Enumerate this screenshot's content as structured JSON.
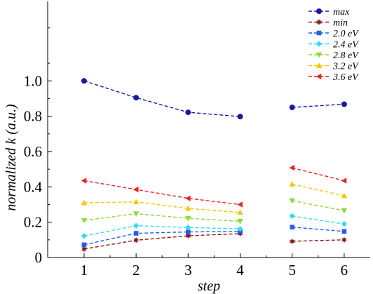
{
  "chart_data": {
    "type": "line",
    "xlabel": "step",
    "ylabel": "normalized k (a.u.)",
    "x": [
      1,
      2,
      3,
      4,
      5,
      6
    ],
    "xlim": [
      0.3,
      6.5
    ],
    "ylim": [
      0,
      1.45
    ],
    "x_ticks": [
      "1",
      "2",
      "3",
      "4",
      "5",
      "6"
    ],
    "y_ticks": [
      "0",
      "0.2",
      "0.4",
      "0.6",
      "0.8",
      "1.0"
    ],
    "line_style": "dashed",
    "grid": false,
    "legend_position": "top-right",
    "break_between_x": [
      4,
      5
    ],
    "series": [
      {
        "name": "max",
        "color": "#1a1aa6",
        "marker": "circle",
        "values": [
          1.0,
          0.905,
          0.822,
          0.798,
          0.85,
          0.868
        ]
      },
      {
        "name": "min",
        "color": "#8b1a1a",
        "marker": "star",
        "values": [
          0.048,
          0.098,
          0.123,
          0.135,
          0.092,
          0.1
        ]
      },
      {
        "name": "2.0 eV",
        "color": "#1f5ff0",
        "marker": "square",
        "values": [
          0.072,
          0.137,
          0.145,
          0.147,
          0.172,
          0.148
        ]
      },
      {
        "name": "2.4 eV",
        "color": "#33ddee",
        "marker": "diamond",
        "values": [
          0.122,
          0.18,
          0.17,
          0.162,
          0.235,
          0.19
        ]
      },
      {
        "name": "2.8 eV",
        "color": "#88dd33",
        "marker": "triangle-down",
        "values": [
          0.21,
          0.248,
          0.222,
          0.205,
          0.322,
          0.265
        ]
      },
      {
        "name": "3.2 eV",
        "color": "#f2c800",
        "marker": "triangle-up",
        "values": [
          0.31,
          0.315,
          0.278,
          0.255,
          0.415,
          0.35
        ]
      },
      {
        "name": "3.6 eV",
        "color": "#ee2222",
        "marker": "triangle-left",
        "values": [
          0.435,
          0.385,
          0.335,
          0.3,
          0.508,
          0.435
        ]
      }
    ]
  }
}
